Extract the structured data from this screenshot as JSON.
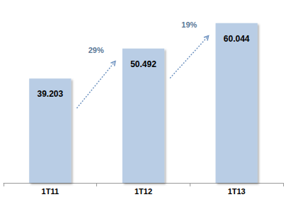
{
  "chart_data": {
    "type": "bar",
    "categories": [
      "1T11",
      "1T12",
      "1T13"
    ],
    "values": [
      39.203,
      50.492,
      60.044
    ],
    "color": "#b9cde5",
    "ylim": [
      0,
      65
    ],
    "data_labels": true,
    "tick_labels": "x",
    "grid": false,
    "annotations": [
      {
        "text": "29%",
        "from": "1T11",
        "to": "1T12"
      },
      {
        "text": "19%",
        "from": "1T12",
        "to": "1T13"
      }
    ]
  }
}
